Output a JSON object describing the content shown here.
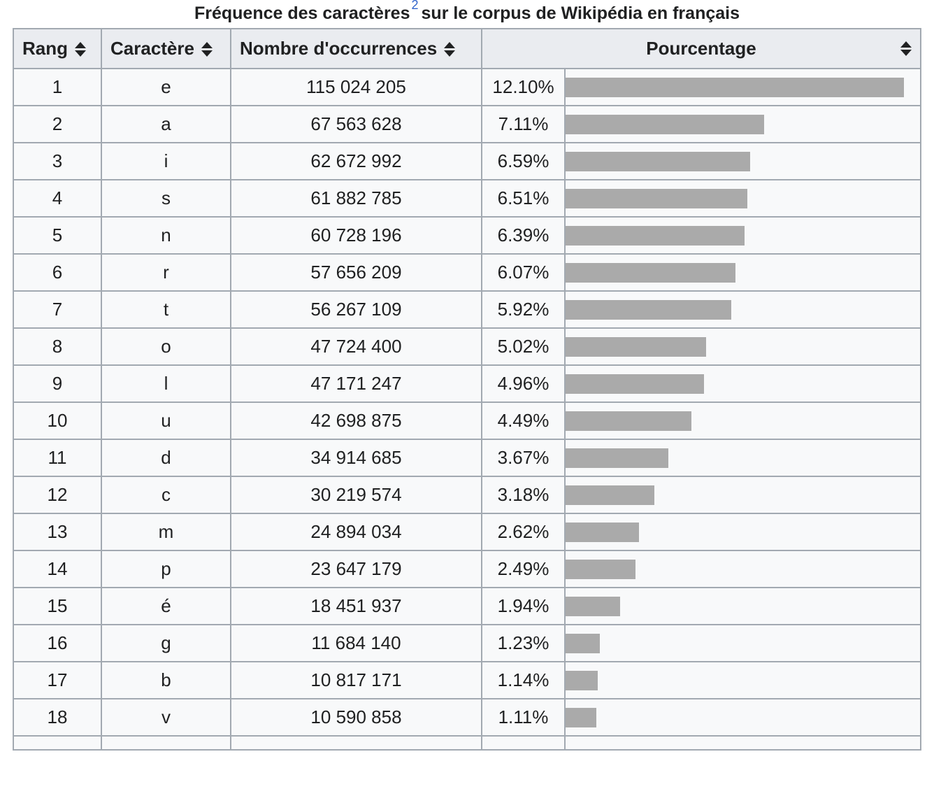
{
  "caption": {
    "before": "Fréquence des caractères",
    "ref": "2",
    "after": "sur le corpus de Wikipédia en français"
  },
  "headers": {
    "rank": "Rang",
    "character": "Caractère",
    "occurrences": "Nombre d'occurrences",
    "percentage": "Pourcentage"
  },
  "bar_color": "#aaaaaa",
  "rows": [
    {
      "rank": "1",
      "char": "e",
      "count": "115 024 205",
      "pct_label": "12.10%",
      "pct": 12.1
    },
    {
      "rank": "2",
      "char": "a",
      "count": "67 563 628",
      "pct_label": "7.11%",
      "pct": 7.11
    },
    {
      "rank": "3",
      "char": "i",
      "count": "62 672 992",
      "pct_label": "6.59%",
      "pct": 6.59
    },
    {
      "rank": "4",
      "char": "s",
      "count": "61 882 785",
      "pct_label": "6.51%",
      "pct": 6.51
    },
    {
      "rank": "5",
      "char": "n",
      "count": "60 728 196",
      "pct_label": "6.39%",
      "pct": 6.39
    },
    {
      "rank": "6",
      "char": "r",
      "count": "57 656 209",
      "pct_label": "6.07%",
      "pct": 6.07
    },
    {
      "rank": "7",
      "char": "t",
      "count": "56 267 109",
      "pct_label": "5.92%",
      "pct": 5.92
    },
    {
      "rank": "8",
      "char": "o",
      "count": "47 724 400",
      "pct_label": "5.02%",
      "pct": 5.02
    },
    {
      "rank": "9",
      "char": "l",
      "count": "47 171 247",
      "pct_label": "4.96%",
      "pct": 4.96
    },
    {
      "rank": "10",
      "char": "u",
      "count": "42 698 875",
      "pct_label": "4.49%",
      "pct": 4.49
    },
    {
      "rank": "11",
      "char": "d",
      "count": "34 914 685",
      "pct_label": "3.67%",
      "pct": 3.67
    },
    {
      "rank": "12",
      "char": "c",
      "count": "30 219 574",
      "pct_label": "3.18%",
      "pct": 3.18
    },
    {
      "rank": "13",
      "char": "m",
      "count": "24 894 034",
      "pct_label": "2.62%",
      "pct": 2.62
    },
    {
      "rank": "14",
      "char": "p",
      "count": "23 647 179",
      "pct_label": "2.49%",
      "pct": 2.49
    },
    {
      "rank": "15",
      "char": "é",
      "count": "18 451 937",
      "pct_label": "1.94%",
      "pct": 1.94
    },
    {
      "rank": "16",
      "char": "g",
      "count": "11 684 140",
      "pct_label": "1.23%",
      "pct": 1.23
    },
    {
      "rank": "17",
      "char": "b",
      "count": "10 817 171",
      "pct_label": "1.14%",
      "pct": 1.14
    },
    {
      "rank": "18",
      "char": "v",
      "count": "10 590 858",
      "pct_label": "1.11%",
      "pct": 1.11
    }
  ]
}
